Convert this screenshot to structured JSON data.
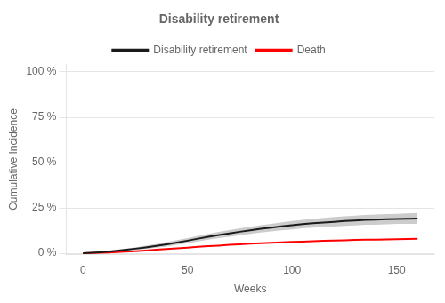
{
  "chart_data": {
    "type": "line",
    "title": "Disability retirement",
    "x_label": "Weeks",
    "y_label": "Cumulative Incidence",
    "x": [
      0,
      4,
      8,
      12,
      16,
      20,
      25,
      30,
      35,
      40,
      45,
      50,
      55,
      60,
      65,
      70,
      75,
      80,
      85,
      90,
      95,
      100,
      105,
      110,
      115,
      120,
      125,
      130,
      135,
      140,
      145,
      150,
      155,
      160
    ],
    "series": [
      {
        "name": "Disability retirement",
        "color": "#1a1a1a",
        "values": [
          0.001,
          0.003,
          0.006,
          0.01,
          0.014,
          0.019,
          0.026,
          0.033,
          0.041,
          0.05,
          0.06,
          0.07,
          0.081,
          0.091,
          0.101,
          0.11,
          0.119,
          0.127,
          0.135,
          0.142,
          0.149,
          0.155,
          0.161,
          0.166,
          0.17,
          0.174,
          0.178,
          0.181,
          0.184,
          0.186,
          0.188,
          0.19,
          0.191,
          0.192
        ],
        "ci_lower": [
          0.0,
          0.001,
          0.003,
          0.006,
          0.009,
          0.013,
          0.019,
          0.024,
          0.031,
          0.038,
          0.047,
          0.056,
          0.066,
          0.075,
          0.084,
          0.092,
          0.1,
          0.107,
          0.115,
          0.121,
          0.127,
          0.132,
          0.138,
          0.142,
          0.145,
          0.148,
          0.152,
          0.154,
          0.157,
          0.158,
          0.16,
          0.162,
          0.162,
          0.162
        ],
        "ci_upper": [
          0.002,
          0.005,
          0.009,
          0.014,
          0.019,
          0.025,
          0.033,
          0.042,
          0.051,
          0.062,
          0.073,
          0.084,
          0.096,
          0.107,
          0.118,
          0.128,
          0.138,
          0.147,
          0.155,
          0.163,
          0.171,
          0.178,
          0.184,
          0.19,
          0.195,
          0.2,
          0.204,
          0.208,
          0.211,
          0.214,
          0.216,
          0.218,
          0.22,
          0.222
        ],
        "ci_color": "#aaaaaa"
      },
      {
        "name": "Death",
        "color": "#ff0000",
        "values": [
          0.001,
          0.002,
          0.003,
          0.005,
          0.007,
          0.009,
          0.012,
          0.016,
          0.02,
          0.024,
          0.028,
          0.032,
          0.036,
          0.04,
          0.043,
          0.047,
          0.05,
          0.053,
          0.056,
          0.058,
          0.061,
          0.063,
          0.065,
          0.067,
          0.069,
          0.071,
          0.072,
          0.074,
          0.075,
          0.076,
          0.077,
          0.078,
          0.079,
          0.08
        ]
      }
    ],
    "xlim": [
      -8,
      168
    ],
    "ylim": [
      -0.005,
      1.04
    ],
    "xticks": [
      0,
      50,
      100,
      150
    ],
    "yticks": [
      {
        "value": 0,
        "label": "0 %"
      },
      {
        "value": 0.25,
        "label": "25 %"
      },
      {
        "value": 0.5,
        "label": "50 %"
      },
      {
        "value": 0.75,
        "label": "75 %"
      },
      {
        "value": 1.0,
        "label": "100 %"
      }
    ],
    "grid": "y",
    "legend": "top"
  }
}
